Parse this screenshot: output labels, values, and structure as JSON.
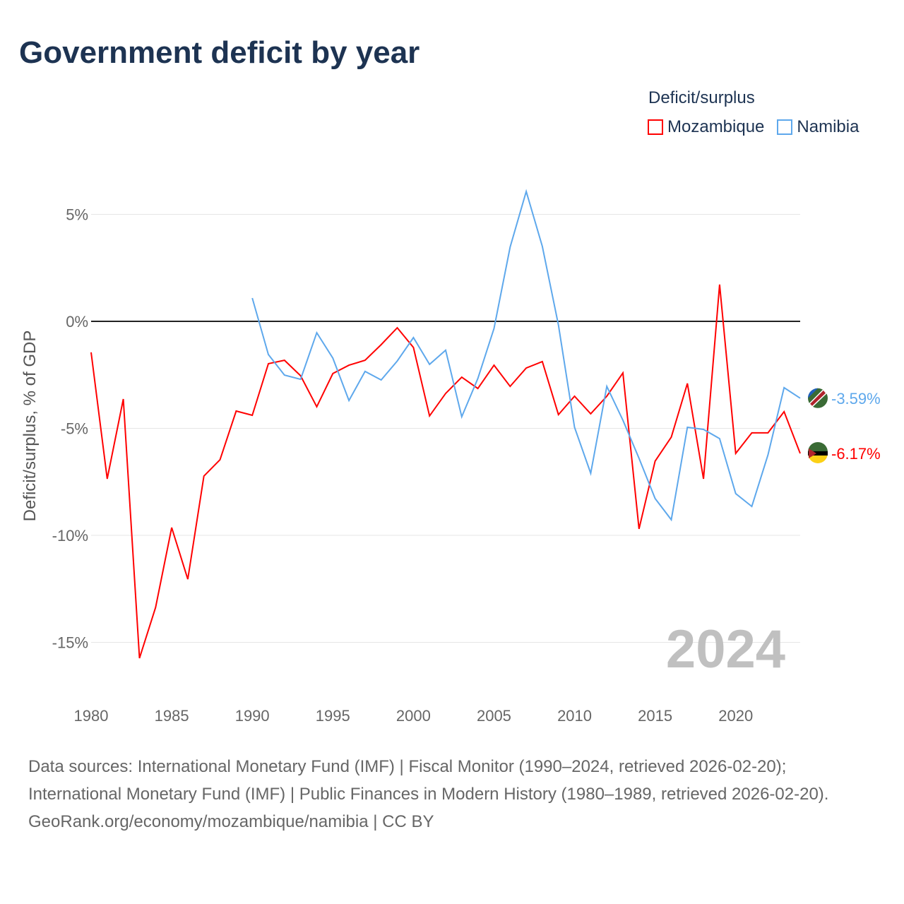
{
  "title": "Government deficit by year",
  "legend": {
    "title": "Deficit/surplus",
    "items": [
      "Mozambique",
      "Namibia"
    ]
  },
  "colors": {
    "Mozambique": "#ff0000",
    "Namibia": "#5ea8ec"
  },
  "watermark_year": "2024",
  "end_labels": {
    "Namibia": "-3.59%",
    "Mozambique": "-6.17%"
  },
  "sources": [
    "Data sources: International Monetary Fund (IMF) | Fiscal Monitor (1990–2024, retrieved 2026-02-20); International Monetary Fund (IMF) | Public Finances in Modern History (1980–1989, retrieved 2026-02-20).",
    "GeoRank.org/economy/mozambique/namibia | CC BY"
  ],
  "chart_data": {
    "type": "line",
    "title": "Government deficit by year",
    "xlabel": "",
    "ylabel": "Deficit/surplus, % of GDP",
    "xlim": [
      1980,
      2024
    ],
    "ylim": [
      -17,
      7
    ],
    "xticks": [
      1980,
      1985,
      1990,
      1995,
      2000,
      2005,
      2010,
      2015,
      2020
    ],
    "yticks": [
      {
        "v": 5,
        "label": "5%"
      },
      {
        "v": 0,
        "label": "0%"
      },
      {
        "v": -5,
        "label": "-5%"
      },
      {
        "v": -10,
        "label": "-10%"
      },
      {
        "v": -15,
        "label": "-15%"
      }
    ],
    "legend_position": "top-right",
    "grid": true,
    "series": [
      {
        "name": "Mozambique",
        "start": 1980,
        "values": [
          -1.45,
          -7.36,
          -3.63,
          -15.74,
          -13.37,
          -9.64,
          -12.05,
          -7.23,
          -6.47,
          -4.19,
          -4.39,
          -1.98,
          -1.82,
          -2.54,
          -3.99,
          -2.44,
          -2.05,
          -1.82,
          -1.09,
          -0.3,
          -1.22,
          -4.42,
          -3.37,
          -2.61,
          -3.14,
          -2.05,
          -3.04,
          -2.18,
          -1.88,
          -4.36,
          -3.5,
          -4.32,
          -3.5,
          -2.41,
          -9.7,
          -6.53,
          -5.41,
          -2.9,
          -7.36,
          1.72,
          -6.17,
          -5.21,
          -5.21,
          -4.22,
          -6.17
        ]
      },
      {
        "name": "Namibia",
        "start": 1990,
        "values": [
          1.09,
          -1.55,
          -2.51,
          -2.71,
          -0.53,
          -1.72,
          -3.7,
          -2.34,
          -2.74,
          -1.85,
          -0.76,
          -2.01,
          -1.35,
          -4.46,
          -2.67,
          -0.33,
          3.47,
          6.07,
          3.5,
          -0.17,
          -4.95,
          -7.1,
          -3.04,
          -4.62,
          -6.4,
          -8.28,
          -9.27,
          -4.95,
          -5.05,
          -5.48,
          -8.05,
          -8.65,
          -6.24,
          -3.1,
          -3.59
        ]
      }
    ]
  }
}
